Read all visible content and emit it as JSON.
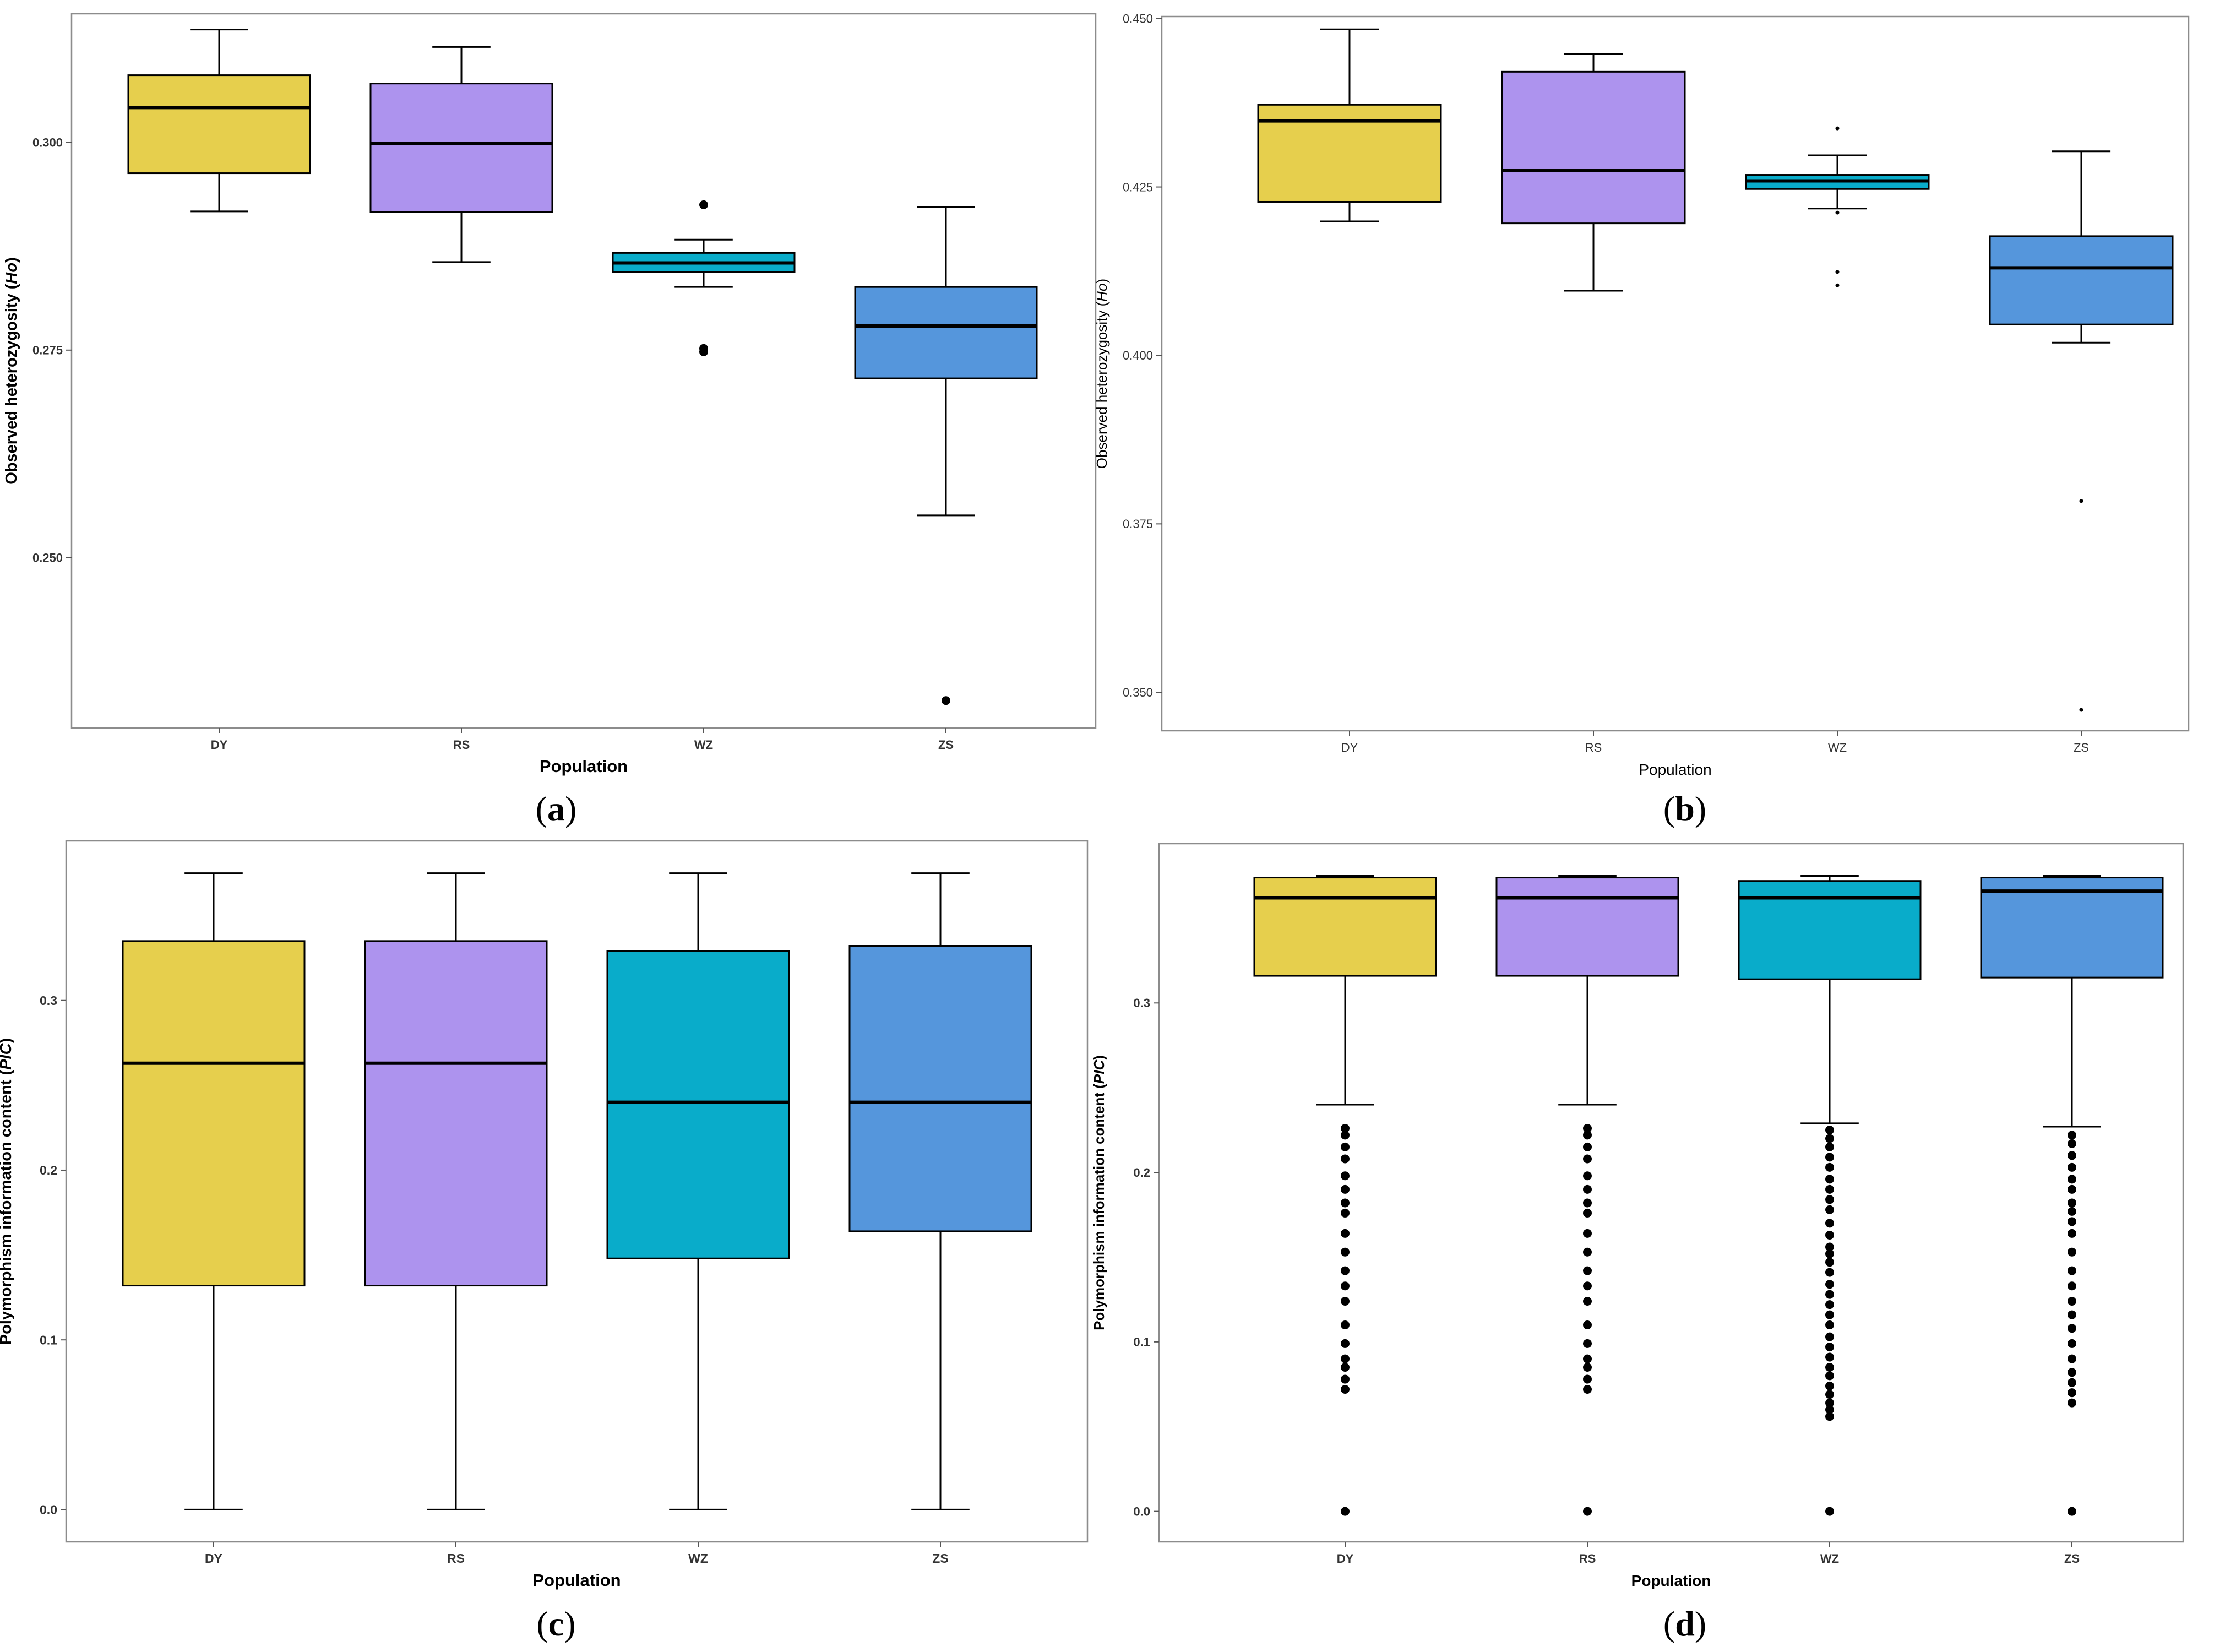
{
  "chart_data": [
    {
      "id": "a",
      "type": "boxplot",
      "panel_label": "a",
      "xlabel": "Population",
      "ylabel": "Observed heterozygosity",
      "ylabel_italic": "Ho",
      "categories": [
        "DY",
        "RS",
        "WZ",
        "ZS"
      ],
      "colors": [
        "#E6CF4D",
        "#AD93EE",
        "#09ACCA",
        "#5596DC"
      ],
      "ylim": [
        0.2295,
        0.3155
      ],
      "yticks": [
        0.25,
        0.275,
        0.3
      ],
      "ytick_labels": [
        "0.250",
        "0.275",
        "0.300"
      ],
      "boxes": [
        {
          "category": "DY",
          "whisker_low": 0.2917,
          "q1": 0.2963,
          "median": 0.3042,
          "q3": 0.3081,
          "whisker_high": 0.3136,
          "outliers": []
        },
        {
          "category": "RS",
          "whisker_low": 0.2856,
          "q1": 0.2916,
          "median": 0.2999,
          "q3": 0.3071,
          "whisker_high": 0.3115,
          "outliers": []
        },
        {
          "category": "WZ",
          "whisker_low": 0.2826,
          "q1": 0.2844,
          "median": 0.2855,
          "q3": 0.2867,
          "whisker_high": 0.2883,
          "outliers": [
            0.2925,
            0.2752,
            0.2748
          ]
        },
        {
          "category": "ZS",
          "whisker_low": 0.2551,
          "q1": 0.2716,
          "median": 0.2779,
          "q3": 0.2826,
          "whisker_high": 0.2922,
          "outliers": [
            0.2328
          ]
        }
      ]
    },
    {
      "id": "b",
      "type": "boxplot",
      "panel_label": "b",
      "xlabel": "Population",
      "ylabel": "Observed heterozygosity",
      "ylabel_italic": "Ho",
      "categories": [
        "DY",
        "RS",
        "WZ",
        "ZS"
      ],
      "colors": [
        "#E6CF4D",
        "#AD93EE",
        "#09ACCA",
        "#5596DC"
      ],
      "ylim": [
        0.3443,
        0.4503
      ],
      "yticks": [
        0.35,
        0.375,
        0.4,
        0.425,
        0.45
      ],
      "ytick_labels": [
        "0.350",
        "0.375",
        "0.400",
        "0.425",
        "0.450"
      ],
      "boxes": [
        {
          "category": "DY",
          "whisker_low": 0.4199,
          "q1": 0.4228,
          "median": 0.4348,
          "q3": 0.4372,
          "whisker_high": 0.4484,
          "outliers": []
        },
        {
          "category": "RS",
          "whisker_low": 0.4096,
          "q1": 0.4196,
          "median": 0.4275,
          "q3": 0.4421,
          "whisker_high": 0.4447,
          "outliers": []
        },
        {
          "category": "WZ",
          "whisker_low": 0.4218,
          "q1": 0.4247,
          "median": 0.4259,
          "q3": 0.4268,
          "whisker_high": 0.4297,
          "outliers": [
            0.4337,
            0.4212,
            0.4124,
            0.4104
          ]
        },
        {
          "category": "ZS",
          "whisker_low": 0.4019,
          "q1": 0.4046,
          "median": 0.413,
          "q3": 0.4177,
          "whisker_high": 0.4303,
          "outliers": [
            0.3784,
            0.3474
          ]
        }
      ]
    },
    {
      "id": "c",
      "type": "boxplot",
      "panel_label": "c",
      "xlabel": "Population",
      "ylabel": "Polymorphism information content",
      "ylabel_italic": "PIC",
      "categories": [
        "DY",
        "RS",
        "WZ",
        "ZS"
      ],
      "colors": [
        "#E6CF4D",
        "#AD93EE",
        "#09ACCA",
        "#5596DC"
      ],
      "ylim": [
        -0.019,
        0.394
      ],
      "yticks": [
        0.0,
        0.1,
        0.2,
        0.3
      ],
      "ytick_labels": [
        "0.0",
        "0.1",
        "0.2",
        "0.3"
      ],
      "boxes": [
        {
          "category": "DY",
          "whisker_low": 0.0,
          "q1": 0.132,
          "median": 0.263,
          "q3": 0.335,
          "whisker_high": 0.375,
          "outliers": []
        },
        {
          "category": "RS",
          "whisker_low": 0.0,
          "q1": 0.132,
          "median": 0.263,
          "q3": 0.335,
          "whisker_high": 0.375,
          "outliers": []
        },
        {
          "category": "WZ",
          "whisker_low": 0.0,
          "q1": 0.148,
          "median": 0.24,
          "q3": 0.329,
          "whisker_high": 0.375,
          "outliers": []
        },
        {
          "category": "ZS",
          "whisker_low": 0.0,
          "q1": 0.164,
          "median": 0.24,
          "q3": 0.332,
          "whisker_high": 0.375,
          "outliers": []
        }
      ]
    },
    {
      "id": "d",
      "type": "boxplot",
      "panel_label": "d",
      "xlabel": "Population",
      "ylabel": "Polymorphism information content",
      "ylabel_italic": "PIC",
      "categories": [
        "DY",
        "RS",
        "WZ",
        "ZS"
      ],
      "colors": [
        "#E6CF4D",
        "#AD93EE",
        "#09ACCA",
        "#5596DC"
      ],
      "ylim": [
        -0.018,
        0.394
      ],
      "yticks": [
        0.0,
        0.1,
        0.2,
        0.3
      ],
      "ytick_labels": [
        "0.0",
        "0.1",
        "0.2",
        "0.3"
      ],
      "boxes": [
        {
          "category": "DY",
          "whisker_low": 0.24,
          "q1": 0.316,
          "median": 0.362,
          "q3": 0.374,
          "whisker_high": 0.375,
          "outliers": [
            0.226,
            0.222,
            0.215,
            0.208,
            0.198,
            0.19,
            0.182,
            0.176,
            0.164,
            0.153,
            0.142,
            0.133,
            0.124,
            0.11,
            0.099,
            0.09,
            0.085,
            0.078,
            0.072,
            0.0
          ]
        },
        {
          "category": "RS",
          "whisker_low": 0.24,
          "q1": 0.316,
          "median": 0.362,
          "q3": 0.374,
          "whisker_high": 0.375,
          "outliers": [
            0.226,
            0.222,
            0.215,
            0.208,
            0.198,
            0.19,
            0.182,
            0.176,
            0.164,
            0.153,
            0.142,
            0.133,
            0.124,
            0.11,
            0.099,
            0.09,
            0.085,
            0.078,
            0.072,
            0.0
          ]
        },
        {
          "category": "WZ",
          "whisker_low": 0.229,
          "q1": 0.314,
          "median": 0.362,
          "q3": 0.372,
          "whisker_high": 0.375,
          "outliers": [
            0.225,
            0.22,
            0.215,
            0.209,
            0.203,
            0.196,
            0.19,
            0.184,
            0.178,
            0.17,
            0.163,
            0.156,
            0.152,
            0.147,
            0.141,
            0.134,
            0.128,
            0.122,
            0.116,
            0.11,
            0.103,
            0.097,
            0.091,
            0.085,
            0.08,
            0.074,
            0.069,
            0.064,
            0.06,
            0.056,
            0.0
          ]
        },
        {
          "category": "ZS",
          "whisker_low": 0.227,
          "q1": 0.315,
          "median": 0.366,
          "q3": 0.374,
          "whisker_high": 0.375,
          "outliers": [
            0.222,
            0.217,
            0.21,
            0.203,
            0.196,
            0.19,
            0.182,
            0.177,
            0.171,
            0.164,
            0.153,
            0.142,
            0.133,
            0.124,
            0.116,
            0.108,
            0.099,
            0.09,
            0.082,
            0.076,
            0.07,
            0.064,
            0.0
          ]
        }
      ]
    }
  ]
}
